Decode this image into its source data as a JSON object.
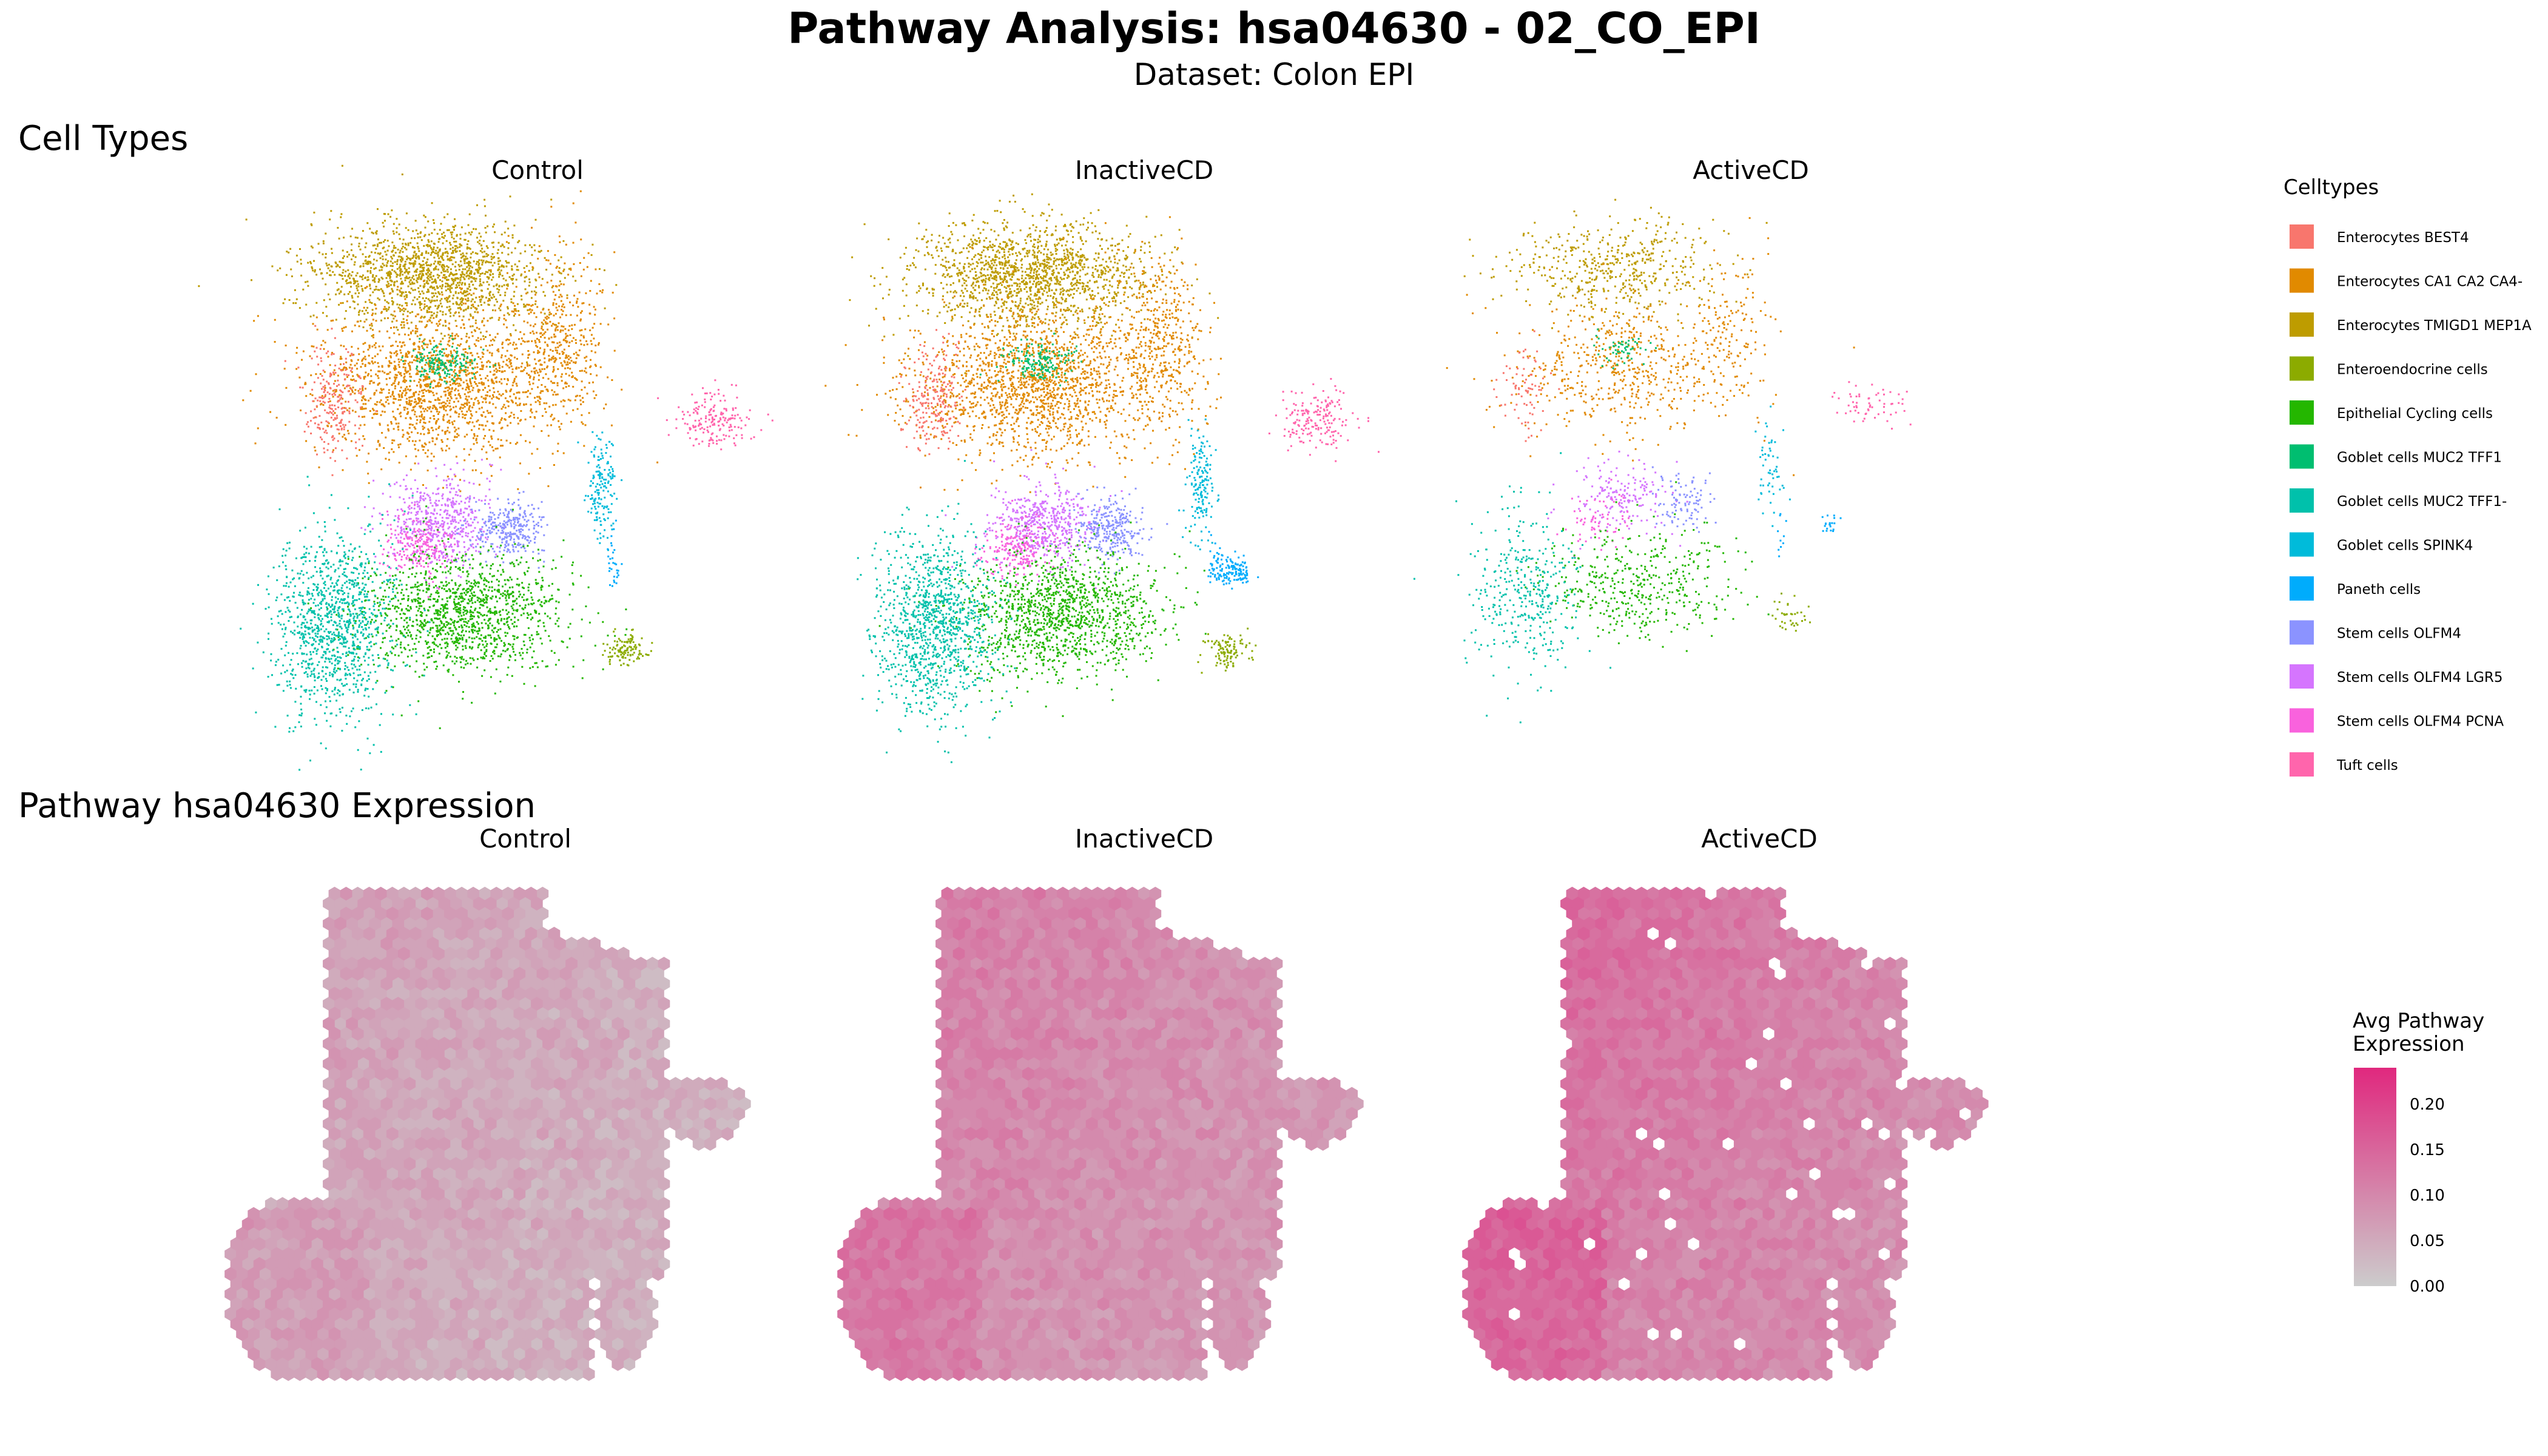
{
  "figure": {
    "title": "Pathway Analysis: hsa04630 - 02_CO_EPI",
    "subtitle": "Dataset: Colon EPI",
    "section_celltypes": "Cell Types",
    "section_pathway": "Pathway hsa04630 Expression"
  },
  "chart_data": [
    {
      "type": "scatter",
      "title": "Cell Types",
      "description_note": "",
      "panels": [
        "Control",
        "InactiveCD",
        "ActiveCD"
      ],
      "axes_visible": false,
      "grid": false,
      "legend": {
        "title": "Celltypes",
        "placement": "right",
        "entries": [
          {
            "name": "Enterocytes BEST4",
            "color": "#F8766D"
          },
          {
            "name": "Enterocytes CA1 CA2 CA4-",
            "color": "#E18A00"
          },
          {
            "name": "Enterocytes TMIGD1 MEP1A",
            "color": "#BE9C00"
          },
          {
            "name": "Enteroendocrine cells",
            "color": "#8CAB00"
          },
          {
            "name": "Epithelial Cycling cells",
            "color": "#24B700"
          },
          {
            "name": "Goblet cells MUC2 TFF1",
            "color": "#00BE70"
          },
          {
            "name": "Goblet cells MUC2 TFF1-",
            "color": "#00C1AB"
          },
          {
            "name": "Goblet cells SPINK4",
            "color": "#00BBDA"
          },
          {
            "name": "Paneth cells",
            "color": "#00ACFC"
          },
          {
            "name": "Stem cells OLFM4",
            "color": "#8B93FF"
          },
          {
            "name": "Stem cells OLFM4 LGR5",
            "color": "#D575FE"
          },
          {
            "name": "Stem cells OLFM4 PCNA",
            "color": "#F962DD"
          },
          {
            "name": "Tuft cells",
            "color": "#FF65AC"
          }
        ]
      }
    },
    {
      "type": "heatmap",
      "title": "Pathway hsa04630 Expression",
      "panels": [
        "Control",
        "InactiveCD",
        "ActiveCD"
      ],
      "axes_visible": false,
      "grid": false,
      "colorbar": {
        "title_line1": "Avg Pathway",
        "title_line2": "Expression",
        "placement": "right",
        "low_color": "#CCCCCC",
        "high_color": "#E0287E",
        "range": [
          0,
          0.24
        ],
        "ticks": [
          0.2,
          0.15,
          0.1,
          0.05,
          0.0
        ],
        "tick_labels": [
          "0.20",
          "0.15",
          "0.10",
          "0.05",
          "0.00"
        ]
      }
    }
  ]
}
